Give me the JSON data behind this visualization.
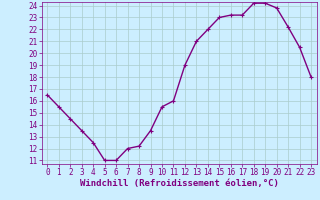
{
  "x": [
    0,
    1,
    2,
    3,
    4,
    5,
    6,
    7,
    8,
    9,
    10,
    11,
    12,
    13,
    14,
    15,
    16,
    17,
    18,
    19,
    20,
    21,
    22,
    23
  ],
  "y": [
    16.5,
    15.5,
    14.5,
    13.5,
    12.5,
    11.0,
    11.0,
    12.0,
    12.2,
    13.5,
    15.5,
    16.0,
    19.0,
    21.0,
    22.0,
    23.0,
    23.2,
    23.2,
    24.2,
    24.2,
    23.8,
    22.2,
    20.5,
    18.0
  ],
  "line_color": "#800080",
  "marker": "+",
  "marker_size": 3,
  "bg_color": "#cceeff",
  "grid_color": "#aacccc",
  "xlabel": "Windchill (Refroidissement éolien,°C)",
  "ylim": [
    11,
    24
  ],
  "xlim": [
    -0.5,
    23.5
  ],
  "yticks": [
    11,
    12,
    13,
    14,
    15,
    16,
    17,
    18,
    19,
    20,
    21,
    22,
    23,
    24
  ],
  "xticks": [
    0,
    1,
    2,
    3,
    4,
    5,
    6,
    7,
    8,
    9,
    10,
    11,
    12,
    13,
    14,
    15,
    16,
    17,
    18,
    19,
    20,
    21,
    22,
    23
  ],
  "tick_color": "#800080",
  "tick_fontsize": 5.5,
  "xlabel_fontsize": 6.5,
  "line_width": 1.0,
  "marker_edge_width": 0.8
}
